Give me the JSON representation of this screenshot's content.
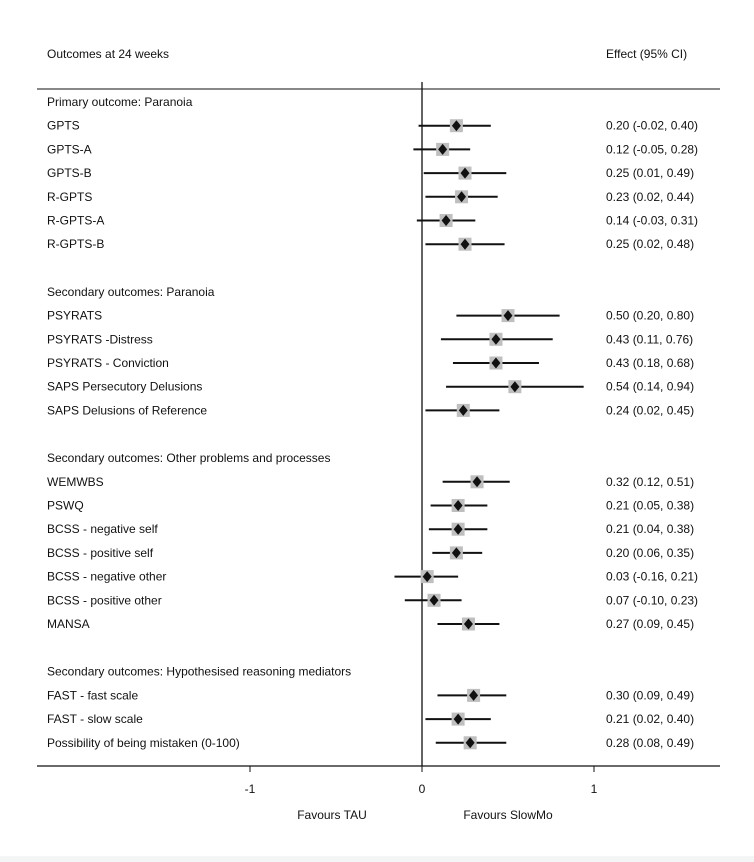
{
  "chart_data": {
    "type": "forest",
    "title": "Outcomes at 24 weeks",
    "effect_header": "Effect (95% CI)",
    "xlim": [
      -2.25,
      1.75
    ],
    "xticks": [
      -1,
      0,
      1
    ],
    "xtick_labels": [
      "-1",
      "0",
      "1"
    ],
    "reference_line": 0,
    "left_favour_label": "Favours TAU",
    "right_favour_label": "Favours SlowMo",
    "colors": {
      "marker": "#111111",
      "marker_box": "#bfbfbf",
      "line": "#111111"
    },
    "groups": [
      {
        "heading": "Primary outcome: Paranoia",
        "rows": [
          {
            "label": "GPTS",
            "estimate": 0.2,
            "lower": -0.02,
            "upper": 0.4,
            "effect_text": "0.20 (-0.02, 0.40)"
          },
          {
            "label": "GPTS-A",
            "estimate": 0.12,
            "lower": -0.05,
            "upper": 0.28,
            "effect_text": "0.12 (-0.05, 0.28)"
          },
          {
            "label": "GPTS-B",
            "estimate": 0.25,
            "lower": 0.01,
            "upper": 0.49,
            "effect_text": "0.25 (0.01, 0.49)"
          },
          {
            "label": "R-GPTS",
            "estimate": 0.23,
            "lower": 0.02,
            "upper": 0.44,
            "effect_text": "0.23 (0.02, 0.44)"
          },
          {
            "label": "R-GPTS-A",
            "estimate": 0.14,
            "lower": -0.03,
            "upper": 0.31,
            "effect_text": "0.14 (-0.03, 0.31)"
          },
          {
            "label": "R-GPTS-B",
            "estimate": 0.25,
            "lower": 0.02,
            "upper": 0.48,
            "effect_text": "0.25 (0.02, 0.48)"
          }
        ]
      },
      {
        "heading": "Secondary outcomes: Paranoia",
        "rows": [
          {
            "label": "PSYRATS",
            "estimate": 0.5,
            "lower": 0.2,
            "upper": 0.8,
            "effect_text": "0.50 (0.20, 0.80)"
          },
          {
            "label": "PSYRATS -Distress",
            "estimate": 0.43,
            "lower": 0.11,
            "upper": 0.76,
            "effect_text": "0.43 (0.11, 0.76)"
          },
          {
            "label": "PSYRATS - Conviction",
            "estimate": 0.43,
            "lower": 0.18,
            "upper": 0.68,
            "effect_text": "0.43 (0.18, 0.68)"
          },
          {
            "label": "SAPS Persecutory Delusions",
            "estimate": 0.54,
            "lower": 0.14,
            "upper": 0.94,
            "effect_text": "0.54 (0.14, 0.94)"
          },
          {
            "label": "SAPS Delusions of Reference",
            "estimate": 0.24,
            "lower": 0.02,
            "upper": 0.45,
            "effect_text": "0.24 (0.02, 0.45)"
          }
        ]
      },
      {
        "heading": "Secondary outcomes: Other problems and processes",
        "rows": [
          {
            "label": "WEMWBS",
            "estimate": 0.32,
            "lower": 0.12,
            "upper": 0.51,
            "effect_text": "0.32 (0.12, 0.51)"
          },
          {
            "label": "PSWQ",
            "estimate": 0.21,
            "lower": 0.05,
            "upper": 0.38,
            "effect_text": "0.21 (0.05, 0.38)"
          },
          {
            "label": "BCSS - negative self",
            "estimate": 0.21,
            "lower": 0.04,
            "upper": 0.38,
            "effect_text": "0.21 (0.04, 0.38)"
          },
          {
            "label": "BCSS - positive self",
            "estimate": 0.2,
            "lower": 0.06,
            "upper": 0.35,
            "effect_text": "0.20 (0.06, 0.35)"
          },
          {
            "label": "BCSS - negative other",
            "estimate": 0.03,
            "lower": -0.16,
            "upper": 0.21,
            "effect_text": "0.03 (-0.16, 0.21)"
          },
          {
            "label": "BCSS - positive other",
            "estimate": 0.07,
            "lower": -0.1,
            "upper": 0.23,
            "effect_text": "0.07 (-0.10, 0.23)"
          },
          {
            "label": "MANSA",
            "estimate": 0.27,
            "lower": 0.09,
            "upper": 0.45,
            "effect_text": "0.27 (0.09, 0.45)"
          }
        ]
      },
      {
        "heading": "Secondary outcomes: Hypothesised reasoning mediators",
        "rows": [
          {
            "label": "FAST - fast scale",
            "estimate": 0.3,
            "lower": 0.09,
            "upper": 0.49,
            "effect_text": "0.30 (0.09, 0.49)"
          },
          {
            "label": "FAST - slow scale",
            "estimate": 0.21,
            "lower": 0.02,
            "upper": 0.4,
            "effect_text": "0.21 (0.02, 0.40)"
          },
          {
            "label": "Possibility of being mistaken (0-100)",
            "estimate": 0.28,
            "lower": 0.08,
            "upper": 0.49,
            "effect_text": "0.28 (0.08, 0.49)"
          }
        ]
      }
    ]
  }
}
